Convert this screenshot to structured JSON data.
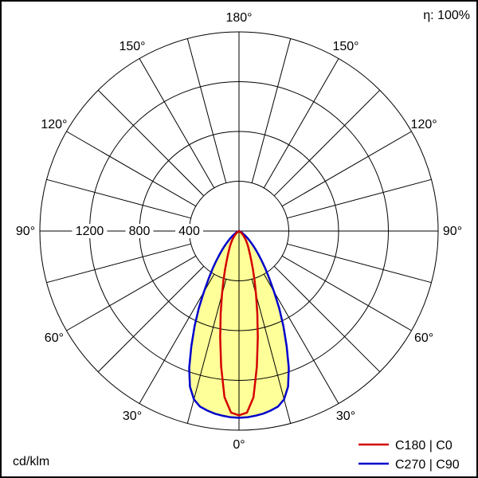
{
  "meta": {
    "efficiency_label": "η: 100%",
    "unit_label": "cd/klm"
  },
  "chart_data": {
    "type": "polar_photometric_curve",
    "unit": "cd/klm",
    "efficiency_percent": 100,
    "angle_labels_deg": [
      0,
      30,
      60,
      90,
      120,
      150,
      180
    ],
    "grid_step_deg": 15,
    "radial_ticks": [
      400,
      800,
      1200
    ],
    "radial_max": 1600,
    "gamma_deg": [
      0,
      2.5,
      5,
      7.5,
      10,
      12.5,
      15,
      17.5,
      20,
      22.5,
      25,
      27.5,
      30,
      32.5,
      35,
      37.5,
      40,
      42.5,
      45,
      47.5,
      50,
      52.5,
      55,
      57.5,
      60,
      62.5,
      65,
      67.5,
      70,
      72.5,
      75,
      80,
      85,
      90
    ],
    "series": [
      {
        "name": "C180 | C0",
        "plane": "C0-C180",
        "color": "#d40000",
        "values": [
          1480,
          1460,
          1340,
          1100,
          870,
          680,
          530,
          415,
          325,
          260,
          210,
          175,
          148,
          125,
          105,
          88,
          72,
          58,
          45,
          34,
          25,
          17,
          11,
          7,
          4,
          2,
          0,
          0,
          0,
          0,
          0,
          0,
          0,
          0
        ]
      },
      {
        "name": "C270 | C90",
        "plane": "C90-C270",
        "color": "#0000cc",
        "fill": "#ffff99",
        "values": [
          1500,
          1498,
          1490,
          1480,
          1465,
          1445,
          1400,
          1310,
          1170,
          1000,
          845,
          700,
          565,
          455,
          370,
          298,
          238,
          190,
          150,
          118,
          92,
          71,
          53,
          39,
          28,
          19,
          12,
          7,
          4,
          2,
          0,
          0,
          0,
          0
        ]
      }
    ]
  }
}
